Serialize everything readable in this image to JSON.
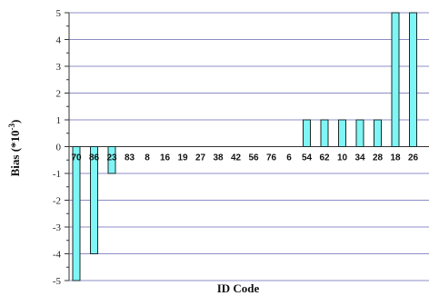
{
  "chart_data": {
    "type": "bar",
    "xlabel": "ID Code",
    "ylabel": "Bias (*10",
    "ylabel_exponent": "-3",
    "ylabel_close": ")",
    "ylim": [
      -5,
      5
    ],
    "yticks": [
      5,
      4,
      3,
      2,
      1,
      0,
      -1,
      -2,
      -3,
      -4,
      -5
    ],
    "grid": true,
    "colors": {
      "bar": "#7ff5f5",
      "bar_edge": "#1a2a2a",
      "grid": "#8c8cc8",
      "axis": "#333333"
    },
    "categories": [
      "70",
      "86",
      "23",
      "83",
      "8",
      "16",
      "19",
      "27",
      "38",
      "42",
      "56",
      "76",
      "6",
      "54",
      "62",
      "10",
      "34",
      "28",
      "18",
      "26"
    ],
    "values": [
      -5,
      -4,
      -1,
      0,
      0,
      0,
      0,
      0,
      0,
      0,
      0,
      0,
      0,
      1,
      1,
      1,
      1,
      1,
      5,
      5
    ]
  }
}
